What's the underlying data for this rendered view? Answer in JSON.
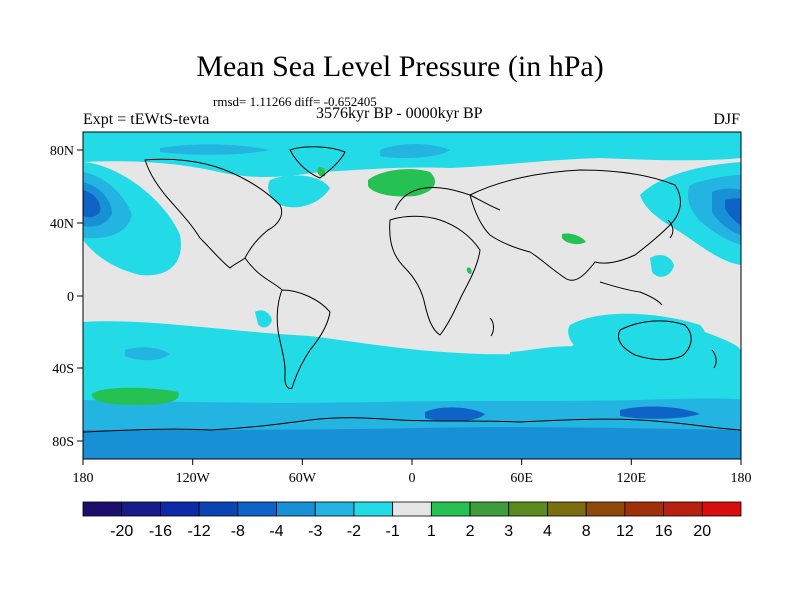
{
  "title": "Mean Sea Level Pressure (in hPa)",
  "stats": "rmsd= 1.11266 diff= -0.652405",
  "experiment": "Expt = tEWtS-tevta",
  "period": "3576kyr BP - 0000kyr BP",
  "season": "DJF",
  "x_ticks": [
    "180",
    "120W",
    "60W",
    "0",
    "60E",
    "120E",
    "180"
  ],
  "y_ticks": [
    "80N",
    "40N",
    "0",
    "40S",
    "80S"
  ],
  "colorbar": {
    "labels": [
      "-20",
      "-16",
      "-12",
      "-8",
      "-4",
      "-3",
      "-2",
      "-1",
      "1",
      "2",
      "3",
      "4",
      "8",
      "12",
      "16",
      "20"
    ],
    "colors": [
      "#1c0e6b",
      "#161d8a",
      "#0d2ba8",
      "#0b45b4",
      "#0f62c6",
      "#1890d6",
      "#23b4e2",
      "#22dbe6",
      "#e6e6e6",
      "#25c152",
      "#3e9c3a",
      "#5b8a1e",
      "#7a6e10",
      "#8e4a0c",
      "#a0300a",
      "#b82010",
      "#d90f0f"
    ]
  },
  "map_colors": {
    "background": "#e6e6e6",
    "m1": "#22dbe6",
    "m2": "#23b4e2",
    "m3": "#1890d6",
    "m4": "#0f62c6",
    "m8": "#0b45b4",
    "p1": "#25c152",
    "coast": "#000000"
  }
}
